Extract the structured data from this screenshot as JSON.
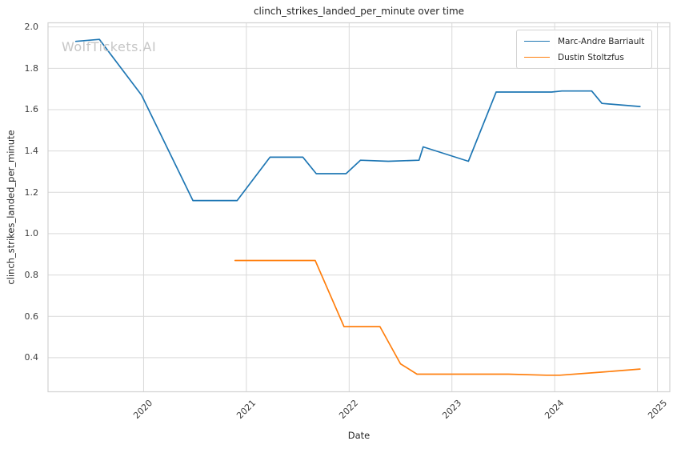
{
  "watermark": "WolfTickets.AI",
  "colors": {
    "background": "#ffffff",
    "grid": "#d9d9d9",
    "spine": "#d2d2d2",
    "title_text": "#262626",
    "tick_text": "#3d3d3d",
    "watermark_text": "#c6c6c6",
    "series_blue": "#1f77b4",
    "series_orange": "#ff7f0e"
  },
  "legend": {
    "position": "upper right",
    "entries": [
      {
        "label": "Marc-Andre Barriault",
        "color": "#1f77b4"
      },
      {
        "label": "Dustin Stoltzfus",
        "color": "#ff7f0e"
      }
    ]
  },
  "chart_data": {
    "type": "line",
    "title": "clinch_strikes_landed_per_minute over time",
    "xlabel": "Date",
    "ylabel": "clinch_strikes_landed_per_minute",
    "x_ticks": [
      2020,
      2021,
      2022,
      2023,
      2024,
      2025
    ],
    "y_ticks": [
      0.4,
      0.6,
      0.8,
      1.0,
      1.2,
      1.4,
      1.6,
      1.8,
      2.0
    ],
    "xlim": [
      2019.07,
      2025.12
    ],
    "ylim": [
      0.235,
      2.02
    ],
    "grid": true,
    "legend_position": "upper right",
    "series": [
      {
        "name": "Marc-Andre Barriault",
        "color": "#1f77b4",
        "x": [
          2019.34,
          2019.57,
          2019.98,
          2020.48,
          2020.91,
          2021.23,
          2021.55,
          2021.68,
          2021.97,
          2022.11,
          2022.38,
          2022.68,
          2022.72,
          2023.16,
          2023.43,
          2023.97,
          2024.07,
          2024.36,
          2024.46,
          2024.83
        ],
        "y": [
          1.93,
          1.94,
          1.67,
          1.16,
          1.16,
          1.37,
          1.37,
          1.29,
          1.29,
          1.355,
          1.35,
          1.355,
          1.42,
          1.35,
          1.685,
          1.685,
          1.69,
          1.69,
          1.63,
          1.615
        ]
      },
      {
        "name": "Dustin Stoltzfus",
        "color": "#ff7f0e",
        "x": [
          2020.89,
          2021.3,
          2021.67,
          2021.95,
          2022.3,
          2022.5,
          2022.66,
          2023.15,
          2023.55,
          2023.92,
          2024.05,
          2024.45,
          2024.83
        ],
        "y": [
          0.87,
          0.87,
          0.87,
          0.55,
          0.55,
          0.37,
          0.32,
          0.32,
          0.32,
          0.315,
          0.315,
          0.33,
          0.345
        ]
      }
    ]
  }
}
